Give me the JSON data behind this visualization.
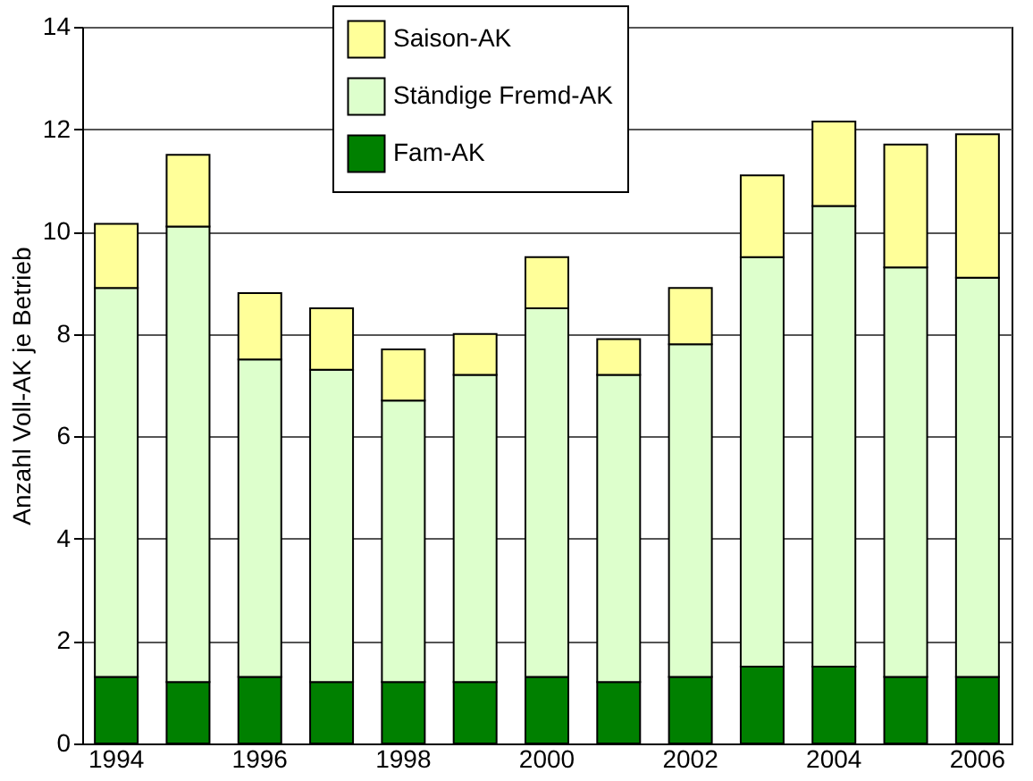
{
  "chart_data": {
    "type": "bar",
    "stacked": true,
    "ylabel": "Anzahl Voll-AK je Betrieb",
    "categories": [
      "1994",
      null,
      "1996",
      null,
      "1998",
      null,
      "2000",
      null,
      "2002",
      null,
      "2004",
      null,
      "2006"
    ],
    "series": [
      {
        "name": "Fam-AK",
        "color": "#008000",
        "values": [
          1.3,
          1.2,
          1.3,
          1.2,
          1.2,
          1.2,
          1.3,
          1.2,
          1.3,
          1.5,
          1.5,
          1.3,
          1.3
        ]
      },
      {
        "name": "Ständige Fremd-AK",
        "color": "#ddffcc",
        "values": [
          7.6,
          8.9,
          6.2,
          6.1,
          5.5,
          6.0,
          7.2,
          6.0,
          6.5,
          8.0,
          9.0,
          8.0,
          7.8
        ]
      },
      {
        "name": "Saison-AK",
        "color": "#ffff99",
        "values": [
          1.25,
          1.4,
          1.3,
          1.2,
          1.0,
          0.8,
          1.0,
          0.7,
          1.1,
          1.6,
          1.65,
          2.4,
          2.8
        ]
      }
    ],
    "ylim": [
      0,
      14
    ],
    "yticks": [
      0,
      2,
      4,
      6,
      8,
      10,
      12,
      14
    ],
    "grid": "y",
    "legend": "top"
  }
}
